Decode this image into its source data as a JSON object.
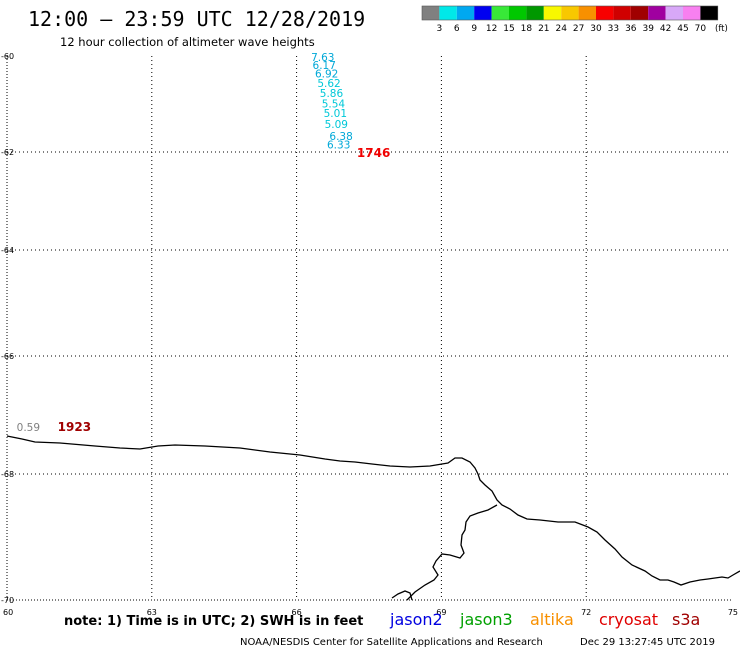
{
  "header": {
    "title": "12:00 – 23:59 UTC 12/28/2019",
    "subtitle": "12 hour collection of altimeter wave heights"
  },
  "colorbar": {
    "units_label": "(ft)",
    "bins": [
      {
        "color": "#808080",
        "label": "3"
      },
      {
        "color": "#00e8e8",
        "label": "6"
      },
      {
        "color": "#00a8f0",
        "label": "9"
      },
      {
        "color": "#0000f0",
        "label": "12"
      },
      {
        "color": "#38e838",
        "label": "15"
      },
      {
        "color": "#00c800",
        "label": "18"
      },
      {
        "color": "#009800",
        "label": "21"
      },
      {
        "color": "#f8f800",
        "label": "24"
      },
      {
        "color": "#f8c800",
        "label": "27"
      },
      {
        "color": "#f89000",
        "label": "30"
      },
      {
        "color": "#f80000",
        "label": "33"
      },
      {
        "color": "#d00000",
        "label": "36"
      },
      {
        "color": "#a00000",
        "label": "39"
      },
      {
        "color": "#a000a0",
        "label": "42"
      },
      {
        "color": "#d8a8f8",
        "label": "45"
      },
      {
        "color": "#f880f0",
        "label": "70"
      },
      {
        "color": "#000000",
        "label": ""
      }
    ]
  },
  "axes": {
    "lon_ticks": [
      "60",
      "63",
      "66",
      "69",
      "72",
      "75"
    ],
    "lat_ticks": [
      "-60",
      "-62",
      "-64",
      "-66",
      "-68",
      "-70"
    ]
  },
  "observations": [
    {
      "value": "7.63",
      "color": "#00a8d8",
      "lat": -60.1,
      "lon": 66.3
    },
    {
      "value": "6.17",
      "color": "#00a8d8",
      "lat": -60.27,
      "lon": 66.33
    },
    {
      "value": "6.92",
      "color": "#00a8d8",
      "lat": -60.45,
      "lon": 66.38
    },
    {
      "value": "5.62",
      "color": "#00c8d8",
      "lat": -60.65,
      "lon": 66.43
    },
    {
      "value": "5.86",
      "color": "#00c8d8",
      "lat": -60.85,
      "lon": 66.48
    },
    {
      "value": "5.54",
      "color": "#00c8d8",
      "lat": -61.07,
      "lon": 66.52
    },
    {
      "value": "5.01",
      "color": "#00c8d8",
      "lat": -61.27,
      "lon": 66.56
    },
    {
      "value": "5.09",
      "color": "#00c8d8",
      "lat": -61.5,
      "lon": 66.58
    },
    {
      "value": "6.38",
      "color": "#00a8d8",
      "lat": -61.75,
      "lon": 66.68
    },
    {
      "value": "6.33",
      "color": "#00a8d8",
      "lat": -61.93,
      "lon": 66.63
    },
    {
      "value": "0.59",
      "color": "#808080",
      "lat": -67.27,
      "lon": 60.2
    }
  ],
  "pass_times": [
    {
      "label": "1746",
      "color": "#f00000",
      "lat": -62.1,
      "lon": 67.25
    },
    {
      "label": "1923",
      "color": "#a00000",
      "lat": -67.27,
      "lon": 61.05
    }
  ],
  "footer": {
    "note": "note: 1) Time is in UTC; 2) SWH is in feet",
    "satellites": [
      {
        "name": "jason2",
        "color": "#0000e0"
      },
      {
        "name": "jason3",
        "color": "#00a000"
      },
      {
        "name": "altika",
        "color": "#f89000"
      },
      {
        "name": "cryosat",
        "color": "#e00000"
      },
      {
        "name": "s3a",
        "color": "#a00000"
      }
    ],
    "credit": "NOAA/NESDIS Center for Satellite Applications and Research",
    "timestamp": "Dec 29 13:27:45 UTC 2019"
  }
}
